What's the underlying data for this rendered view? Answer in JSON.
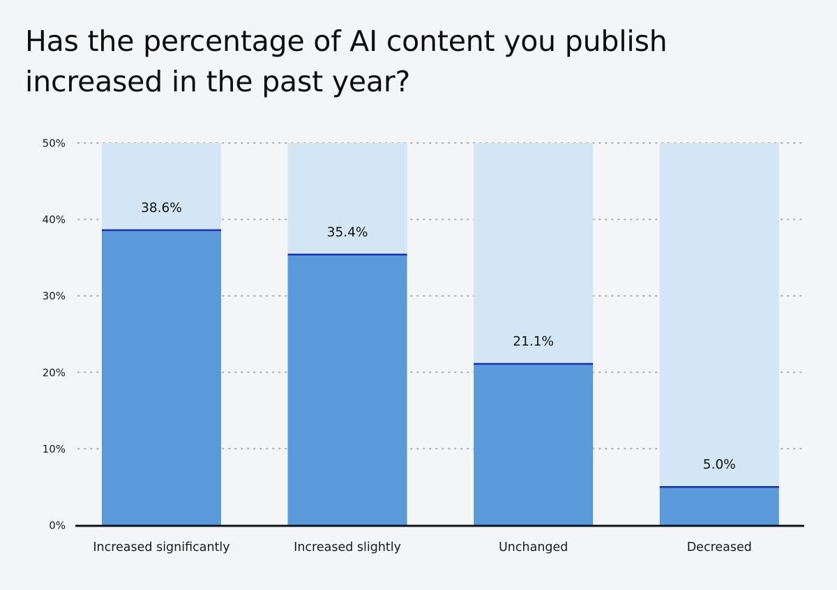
{
  "title": "Has the percentage of AI content you publish increased in the past year?",
  "colors": {
    "background": "#f4f5f7",
    "bar_fill": "#5b9ad9",
    "bar_track": "#d3e6f6",
    "bar_top_line": "#1230b8",
    "axis": "#111111",
    "grid": "#a9abad"
  },
  "chart_data": {
    "type": "bar",
    "title": "Has the percentage of AI content you publish increased in the past year?",
    "categories": [
      "Increased significantly",
      "Increased slightly",
      "Unchanged",
      "Decreased"
    ],
    "values": [
      38.6,
      35.4,
      21.1,
      5.0
    ],
    "data_labels": [
      "38.6%",
      "35.4%",
      "21.1%",
      "5.0%"
    ],
    "ylim": [
      0,
      50
    ],
    "y_ticks": [
      0,
      10,
      20,
      30,
      40,
      50
    ],
    "y_tick_labels": [
      "0%",
      "10%",
      "20%",
      "30%",
      "40%",
      "50%"
    ],
    "grid": "dotted horizontal",
    "xlabel": "",
    "ylabel": ""
  }
}
